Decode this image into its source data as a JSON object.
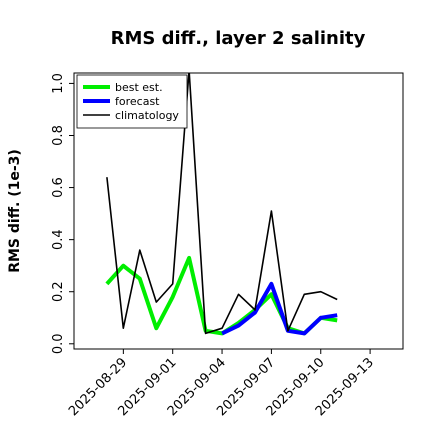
{
  "chart_data": {
    "type": "line",
    "title": "RMS diff., layer 2 salinity",
    "xlabel": "",
    "ylabel": "RMS diff. (1e-3)",
    "ylim": [
      -0.02,
      1.04
    ],
    "xlim": [
      "2025-08-26",
      "2025-09-15"
    ],
    "yticks": [
      "0.0",
      "0.2",
      "0.4",
      "0.6",
      "0.8",
      "1.0"
    ],
    "ytick_values": [
      0.0,
      0.2,
      0.4,
      0.6,
      0.8,
      1.0
    ],
    "xticks": [
      "2025-08-29",
      "2025-09-01",
      "2025-09-04",
      "2025-09-07",
      "2025-09-10",
      "2025-09-13"
    ],
    "highlight_tick": "2025-09-04",
    "highlight_color": "#228b22",
    "grid": false,
    "legend_position": "top-left",
    "series": [
      {
        "name": "best est.",
        "color": "#00ee00",
        "x": [
          "2025-08-28",
          "2025-08-29",
          "2025-08-30",
          "2025-08-31",
          "2025-09-01",
          "2025-09-02",
          "2025-09-03",
          "2025-09-04",
          "2025-09-05",
          "2025-09-06",
          "2025-09-07",
          "2025-09-08",
          "2025-09-09",
          "2025-09-10",
          "2025-09-11"
        ],
        "values": [
          0.23,
          0.3,
          0.25,
          0.06,
          0.18,
          0.33,
          0.05,
          0.04,
          0.08,
          0.13,
          0.19,
          0.06,
          0.04,
          0.1,
          0.09
        ]
      },
      {
        "name": "forecast",
        "color": "#0000ff",
        "x": [
          "2025-09-04",
          "2025-09-05",
          "2025-09-06",
          "2025-09-07",
          "2025-09-08",
          "2025-09-09",
          "2025-09-10",
          "2025-09-11"
        ],
        "values": [
          0.04,
          0.07,
          0.12,
          0.23,
          0.05,
          0.04,
          0.1,
          0.11
        ]
      },
      {
        "name": "climatology",
        "color": "#000000",
        "x": [
          "2025-08-28",
          "2025-08-29",
          "2025-08-30",
          "2025-08-31",
          "2025-09-01",
          "2025-09-02",
          "2025-09-03",
          "2025-09-04",
          "2025-09-05",
          "2025-09-06",
          "2025-09-07",
          "2025-09-08",
          "2025-09-09",
          "2025-09-10",
          "2025-09-11"
        ],
        "values": [
          0.64,
          0.06,
          0.36,
          0.16,
          0.23,
          1.05,
          0.04,
          0.06,
          0.19,
          0.13,
          0.51,
          0.05,
          0.19,
          0.2,
          0.17
        ]
      }
    ]
  }
}
